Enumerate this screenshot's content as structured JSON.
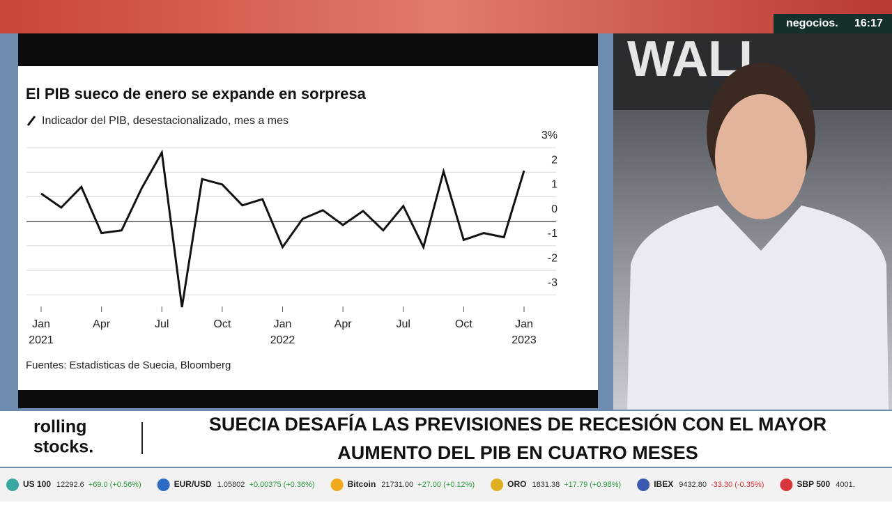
{
  "header": {
    "channel": "negocios.",
    "time": "16:17"
  },
  "chart_data": {
    "type": "line",
    "title": "El PIB sueco de enero se expande en sorpresa",
    "subtitle": "Indicador del PIB, desestacionalizado, mes a mes",
    "source": "Fuentes: Estadisticas de Suecia, Bloomberg",
    "x": [
      "2021-01",
      "2021-02",
      "2021-03",
      "2021-04",
      "2021-05",
      "2021-06",
      "2021-07",
      "2021-08",
      "2021-09",
      "2021-10",
      "2021-11",
      "2021-12",
      "2022-01",
      "2022-02",
      "2022-03",
      "2022-04",
      "2022-05",
      "2022-06",
      "2022-07",
      "2022-08",
      "2022-09",
      "2022-10",
      "2022-11",
      "2022-12",
      "2023-01"
    ],
    "series": [
      {
        "name": "Indicador del PIB",
        "color": "#111111",
        "values": [
          1.13,
          0.56,
          1.4,
          -0.48,
          -0.37,
          1.35,
          2.8,
          -3.5,
          1.72,
          1.5,
          0.65,
          0.9,
          -1.05,
          0.1,
          0.45,
          -0.15,
          0.42,
          -0.37,
          0.62,
          -1.05,
          2.03,
          -0.76,
          -0.48,
          -0.65,
          2.06
        ]
      }
    ],
    "ylim": [
      -3.5,
      3
    ],
    "yticks": [
      {
        "value": 3,
        "label": "3%"
      },
      2,
      1,
      0,
      -1,
      -2,
      -3
    ],
    "xticks": [
      {
        "value": "2021-01",
        "label": "Jan 2021"
      },
      {
        "value": "2021-04",
        "label": "Apr"
      },
      {
        "value": "2021-07",
        "label": "Jul"
      },
      {
        "value": "2021-10",
        "label": "Oct"
      },
      {
        "value": "2022-01",
        "label": "Jan 2022"
      },
      {
        "value": "2022-04",
        "label": "Apr"
      },
      {
        "value": "2022-07",
        "label": "Jul"
      },
      {
        "value": "2022-10",
        "label": "Oct"
      },
      {
        "value": "2023-01",
        "label": "Jan 2023"
      }
    ],
    "grid": true
  },
  "banner": {
    "show_line1": "rolling",
    "show_line2": "stocks.",
    "headline_line1": "SUECIA DESAFÍA LAS PREVISIONES DE RECESIÓN CON EL MAYOR",
    "headline_line2": "AUMENTO DEL PIB EN CUATRO MESES"
  },
  "ticker": [
    {
      "name": "US 100",
      "price": "12292.6",
      "change": "+69.0 (+0.56%)"
    },
    {
      "name": "EUR/USD",
      "price": "1.05802",
      "change": "+0.00375 (+0.36%)"
    },
    {
      "name": "Bitcoin",
      "price": "21731.00",
      "change": "+27.00 (+0.12%)"
    },
    {
      "name": "ORO",
      "price": "1831.38",
      "change": "+17.79 (+0.98%)"
    },
    {
      "name": "IBEX",
      "price": "9432.80",
      "change": "-33.30 (-0.35%)"
    },
    {
      "name": "SBP 500",
      "price": "4001."
    }
  ]
}
